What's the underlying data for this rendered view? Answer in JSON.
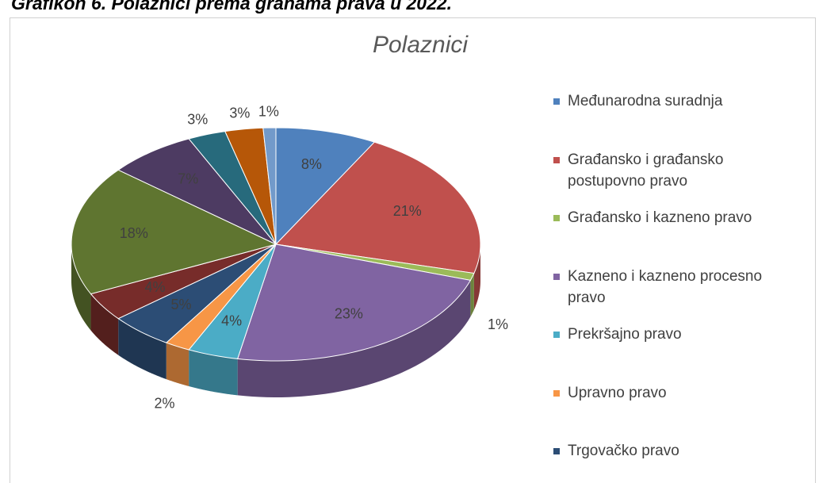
{
  "heading": "Grafikon 6. Polaznici prema granama prava u 2022.",
  "chart_data": {
    "type": "pie",
    "title": "Polaznici",
    "categories": [
      "Međunarodna suradnja",
      "Građansko i građansko postupovno pravo",
      "Građansko i kazneno pravo",
      "Kazneno i kazneno procesno pravo",
      "Prekršajno pravo",
      "Upravno pravo",
      "Trgovačko pravo",
      null,
      null,
      null,
      null,
      null,
      null
    ],
    "values": [
      8,
      21,
      1,
      23,
      4,
      2,
      5,
      4,
      18,
      7,
      3,
      3,
      1
    ],
    "value_labels": [
      "8%",
      "21%",
      "1%",
      "23%",
      "4%",
      "2%",
      "5%",
      "4%",
      "18%",
      "7%",
      "3%",
      "3%",
      "1%"
    ],
    "colors": [
      "#4f81bd",
      "#c0504d",
      "#9bbb59",
      "#8064a2",
      "#4bacc6",
      "#f79646",
      "#2c4d75",
      "#772c2a",
      "#5f7530",
      "#4d3b62",
      "#276a7c",
      "#b65708",
      "#729aca"
    ],
    "legend": "right"
  }
}
